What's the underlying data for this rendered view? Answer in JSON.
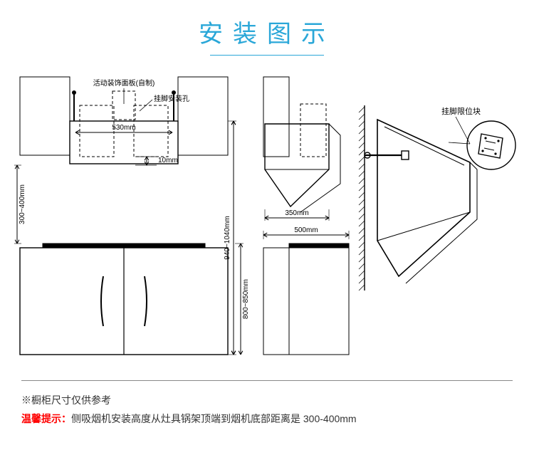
{
  "title": "安装图示",
  "title_color": "#2aa7d8",
  "underline_color": "#2aa7d8",
  "bg": "#ffffff",
  "line_color": "#000000",
  "thin_line": 1,
  "mid_line": 1.4,
  "thick_bar_color": "#000000",
  "labels": {
    "panel_note": "活动装饰面板(自制)",
    "hook_hole": "挂脚安装孔",
    "dim_530": "530mm",
    "dim_10": "10mm",
    "dim_940_1040": "940~1040mm",
    "dim_300_400": "300~400mm",
    "dim_800_850": "800~850mm",
    "dim_350": "350mm",
    "dim_500": "500mm",
    "hook_block": "挂脚限位块"
  },
  "label_fontsize": 11,
  "footer": {
    "note": "※橱柜尺寸仅供参考",
    "warn_label": "温馨提示：",
    "warn_label_color": "#ff0000",
    "warn_text": "侧吸烟机安装高度从灶具锅架顶端到烟机底部距离是 300-400mm"
  }
}
